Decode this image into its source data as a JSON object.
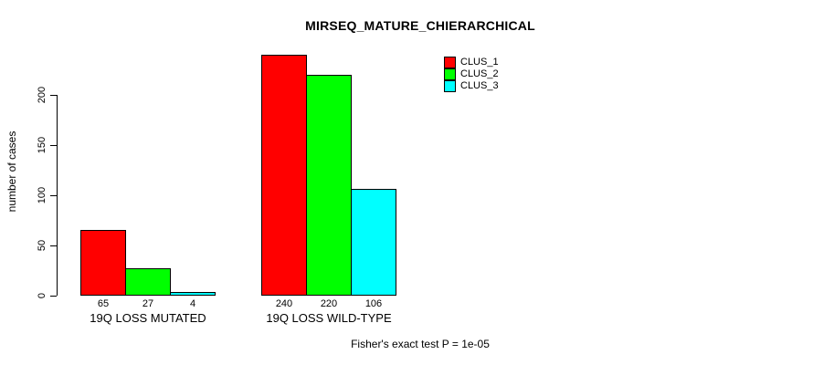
{
  "chart_data": {
    "type": "bar",
    "title": "MIRSEQ_MATURE_CHIERARCHICAL",
    "xlabel": "",
    "ylabel": "number of cases",
    "categories": [
      "19Q LOSS MUTATED",
      "19Q LOSS WILD-TYPE"
    ],
    "series": [
      {
        "name": "CLUS_1",
        "color": "#ff0000",
        "values": [
          65,
          240
        ]
      },
      {
        "name": "CLUS_2",
        "color": "#00ff00",
        "values": [
          27,
          220
        ]
      },
      {
        "name": "CLUS_3",
        "color": "#00ffff",
        "values": [
          4,
          106
        ]
      }
    ],
    "bar_value_labels": [
      [
        "65",
        "27",
        "4"
      ],
      [
        "240",
        "220",
        "106"
      ]
    ],
    "yticks": [
      0,
      50,
      100,
      150,
      200
    ],
    "ylim": [
      0,
      200
    ],
    "grid": false,
    "legend_position": "top-right",
    "legend_entries": [
      "CLUS_1",
      "CLUS_2",
      "CLUS_3"
    ],
    "annotation": "Fisher's exact test P = 1e-05"
  },
  "colors": {
    "background": "#ffffff",
    "axis": "#000000",
    "bar_border": "#000000",
    "text": "#000000",
    "clus_1": "#ff0000",
    "clus_2": "#00ff00",
    "clus_3": "#00ffff"
  }
}
